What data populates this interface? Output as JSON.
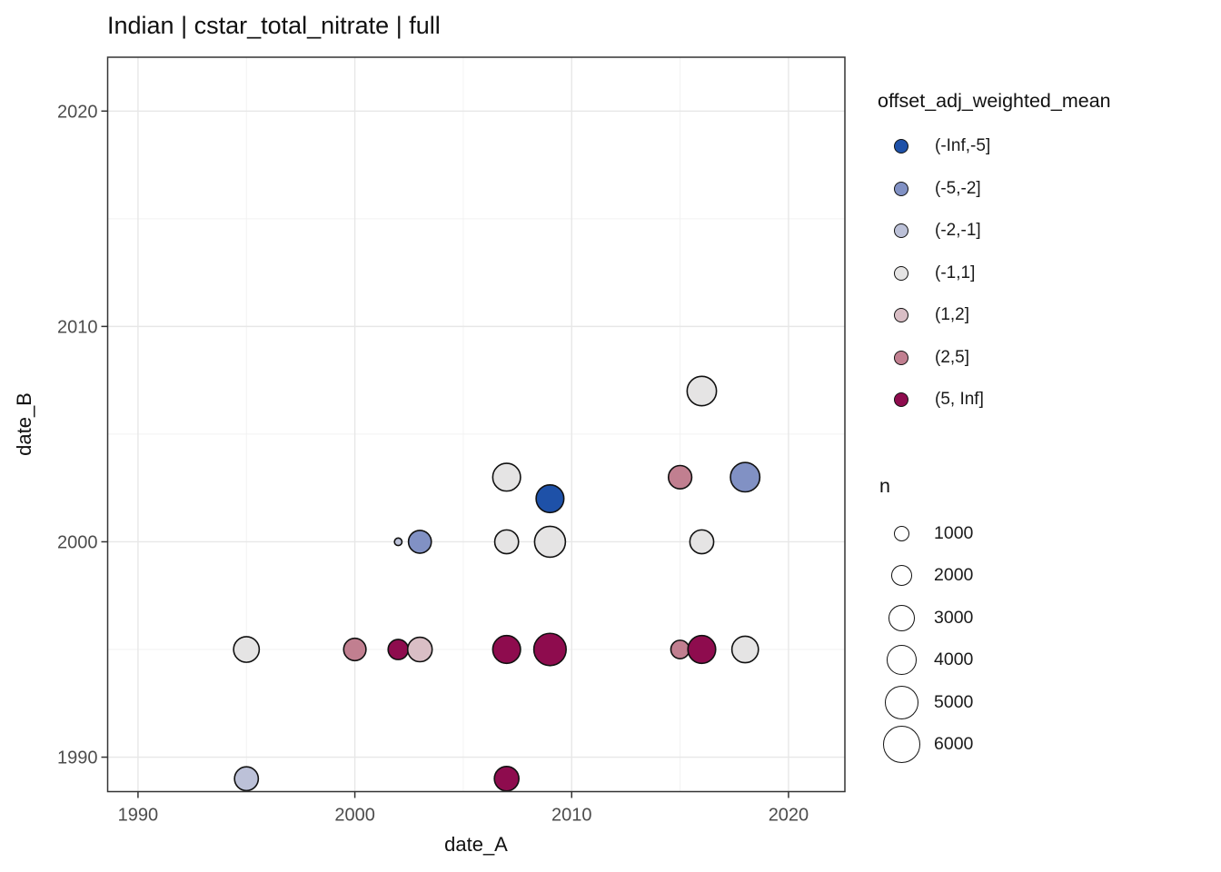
{
  "title": "Indian | cstar_total_nitrate | full",
  "axes": {
    "x_title": "date_A",
    "y_title": "date_B"
  },
  "legends": {
    "color": {
      "title": "offset_adj_weighted_mean"
    },
    "size": {
      "title": "n"
    }
  },
  "style": {
    "background": "#ffffff",
    "grid_major_color": "#e7e7e7",
    "grid_minor_color": "#f2f2f2",
    "panel_border_color": "#333333",
    "tick_color": "#333333",
    "tick_label_color": "#4d4d4d",
    "text_color": "#111111",
    "point_stroke": "#111111"
  },
  "chart_data": {
    "type": "scatter",
    "title": "Indian | cstar_total_nitrate | full",
    "xlabel": "date_A",
    "ylabel": "date_B",
    "xlim": [
      1988.6,
      2022.6
    ],
    "ylim": [
      1988.4,
      2022.5
    ],
    "x_ticks": [
      1990,
      2000,
      2010,
      2020
    ],
    "y_ticks": [
      1990,
      2000,
      2010,
      2020
    ],
    "x_minor_ticks": [
      1995,
      2005,
      2015
    ],
    "y_minor_ticks": [
      1995,
      2005,
      2015
    ],
    "grid": true,
    "legend_position": "right",
    "color_legend_label": "offset_adj_weighted_mean",
    "color_bins": [
      {
        "label": "(-Inf,-5]",
        "color": "#1e51a8"
      },
      {
        "label": "(-5,-2]",
        "color": "#8191c4"
      },
      {
        "label": "(-2,-1]",
        "color": "#bcc1d8"
      },
      {
        "label": "(-1,1]",
        "color": "#e5e4e4"
      },
      {
        "label": "(1,2]",
        "color": "#d9bec5"
      },
      {
        "label": "(2,5]",
        "color": "#c17f90"
      },
      {
        "label": "(5, Inf]",
        "color": "#8e0c4e"
      }
    ],
    "size_legend": {
      "label": "n",
      "breaks": [
        1000,
        2000,
        3000,
        4000,
        5000,
        6000
      ],
      "max_n": 6000,
      "max_radius_px": 20.3
    },
    "points": [
      {
        "date_A": 1995,
        "date_B": 1995,
        "bin": "(-1,1]",
        "n": 2900
      },
      {
        "date_A": 1995,
        "date_B": 1989,
        "bin": "(-2,-1]",
        "n": 2500
      },
      {
        "date_A": 2000,
        "date_B": 1995,
        "bin": "(2,5]",
        "n": 2200
      },
      {
        "date_A": 2002,
        "date_B": 2000,
        "bin": "(-2,-1]",
        "n": 250
      },
      {
        "date_A": 2002,
        "date_B": 1995,
        "bin": "(5, Inf]",
        "n": 1800
      },
      {
        "date_A": 2003,
        "date_B": 2000,
        "bin": "(-5,-2]",
        "n": 2300
      },
      {
        "date_A": 2003,
        "date_B": 1995,
        "bin": "(1,2]",
        "n": 2650
      },
      {
        "date_A": 2007,
        "date_B": 2003,
        "bin": "(-1,1]",
        "n": 3400
      },
      {
        "date_A": 2007,
        "date_B": 2000,
        "bin": "(-1,1]",
        "n": 2500
      },
      {
        "date_A": 2007,
        "date_B": 1995,
        "bin": "(5, Inf]",
        "n": 3400
      },
      {
        "date_A": 2007,
        "date_B": 1989,
        "bin": "(5, Inf]",
        "n": 2650
      },
      {
        "date_A": 2009,
        "date_B": 2002,
        "bin": "(-Inf,-5]",
        "n": 3400
      },
      {
        "date_A": 2009,
        "date_B": 2000,
        "bin": "(-1,1]",
        "n": 4200
      },
      {
        "date_A": 2009,
        "date_B": 1995,
        "bin": "(5, Inf]",
        "n": 4600
      },
      {
        "date_A": 2015,
        "date_B": 2003,
        "bin": "(2,5]",
        "n": 2400
      },
      {
        "date_A": 2015,
        "date_B": 1995,
        "bin": "(2,5]",
        "n": 1500
      },
      {
        "date_A": 2016,
        "date_B": 2007,
        "bin": "(-1,1]",
        "n": 3800
      },
      {
        "date_A": 2016,
        "date_B": 2000,
        "bin": "(-1,1]",
        "n": 2500
      },
      {
        "date_A": 2016,
        "date_B": 1995,
        "bin": "(5, Inf]",
        "n": 3400
      },
      {
        "date_A": 2018,
        "date_B": 2003,
        "bin": "(-5,-2]",
        "n": 3800
      },
      {
        "date_A": 2018,
        "date_B": 1995,
        "bin": "(-1,1]",
        "n": 3100
      }
    ]
  }
}
